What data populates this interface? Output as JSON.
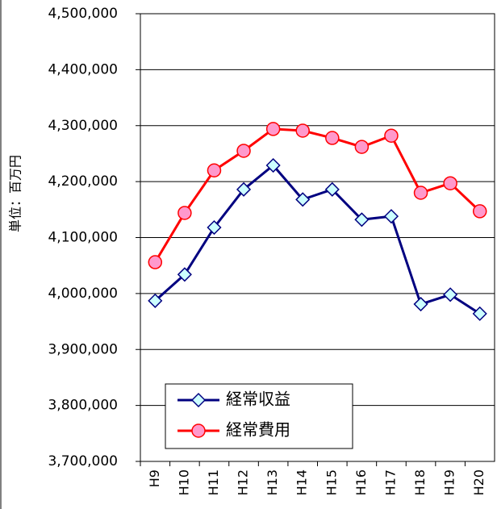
{
  "chart_data": {
    "type": "line",
    "y_label": "単位：百万円",
    "categories": [
      "H9",
      "H10",
      "H11",
      "H12",
      "H13",
      "H14",
      "H15",
      "H16",
      "H17",
      "H18",
      "H19",
      "H20"
    ],
    "series": [
      {
        "name": "経常収益",
        "color": "#000080",
        "marker": "diamond",
        "marker_fill": "#ccffff",
        "values": [
          3987000,
          4034000,
          4118000,
          4186000,
          4229000,
          4168000,
          4186000,
          4132000,
          4138000,
          3981000,
          3998000,
          3964000
        ]
      },
      {
        "name": "経常費用",
        "color": "#ff0000",
        "marker": "circle",
        "marker_fill": "#ff99cc",
        "values": [
          4056000,
          4144000,
          4220000,
          4255000,
          4294000,
          4291000,
          4278000,
          4262000,
          4282000,
          4180000,
          4197000,
          4147000
        ]
      }
    ],
    "ylim": [
      3700000,
      4500000
    ],
    "yticks": [
      {
        "value": 3700000,
        "label": "3,700,000"
      },
      {
        "value": 3800000,
        "label": "3,800,000"
      },
      {
        "value": 3900000,
        "label": "3,900,000"
      },
      {
        "value": 4000000,
        "label": "4,000,000"
      },
      {
        "value": 4100000,
        "label": "4,100,000"
      },
      {
        "value": 4200000,
        "label": "4,200,000"
      },
      {
        "value": 4300000,
        "label": "4,300,000"
      },
      {
        "value": 4400000,
        "label": "4,400,000"
      },
      {
        "value": 4500000,
        "label": "4,500,000"
      }
    ],
    "grid": true
  }
}
